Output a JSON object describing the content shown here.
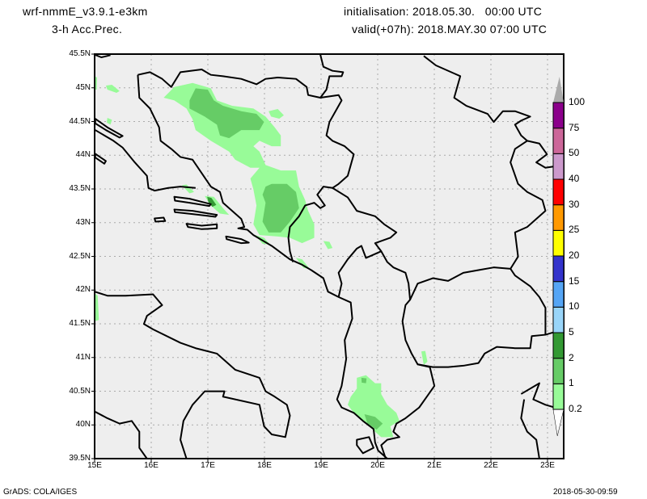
{
  "header": {
    "model": "wrf-nmmE_v3.9.1-e3km",
    "field": "3-h Acc.Prec.",
    "init": "initialisation: 2018.05.30.   00:00 UTC",
    "valid": "valid(+07h): 2018.MAY.30 07:00 UTC"
  },
  "map": {
    "lon_labels": [
      "15E",
      "16E",
      "17E",
      "18E",
      "19E",
      "20E",
      "21E",
      "22E",
      "23E"
    ],
    "lat_labels": [
      "45.5N",
      "45N",
      "44.5N",
      "44N",
      "43.5N",
      "43N",
      "42.5N",
      "42N",
      "41.5N",
      "41N",
      "40.5N",
      "40N",
      "39.5N"
    ],
    "background": "#eeeeee"
  },
  "colorbar": {
    "levels": [
      "0.2",
      "1",
      "2",
      "5",
      "10",
      "15",
      "20",
      "25",
      "30",
      "40",
      "50",
      "75",
      "100"
    ],
    "colors": [
      "#98fb98",
      "#66cc66",
      "#339933",
      "#99d5f9",
      "#55a5f5",
      "#3333cc",
      "#ffff00",
      "#ff9900",
      "#ff0000",
      "#cc99cc",
      "#cc6699",
      "#8b008b"
    ],
    "over_color": "#aaaaaa"
  },
  "footer": {
    "left": "GrADS: COLA/IGES",
    "right": "2018-05-30-09:59"
  }
}
